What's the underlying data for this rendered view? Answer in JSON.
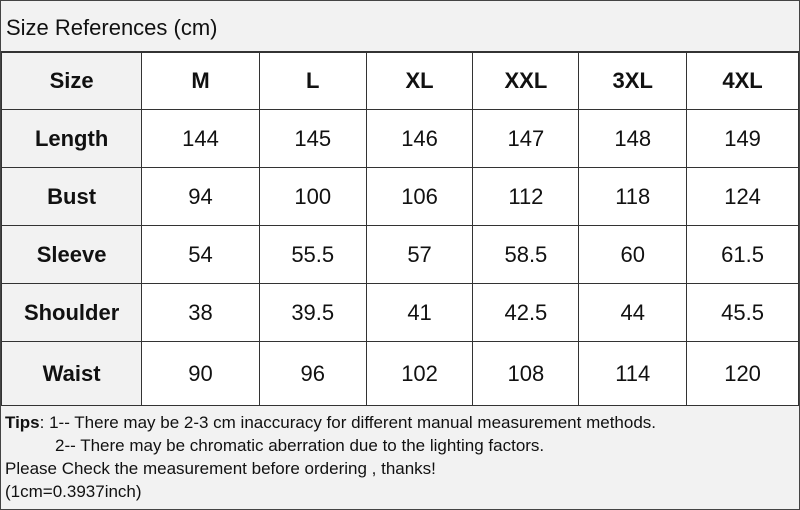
{
  "header": {
    "title": "Size References (cm)"
  },
  "table": {
    "columns": [
      "Size",
      "M",
      "L",
      "XL",
      "XXL",
      "3XL",
      "4XL"
    ],
    "rows": [
      [
        "Length",
        144,
        145,
        146,
        147,
        148,
        149
      ],
      [
        "Bust",
        94,
        100,
        106,
        112,
        118,
        124
      ],
      [
        "Sleeve",
        54,
        55.5,
        57,
        58.5,
        60,
        61.5
      ],
      [
        "Shoulder",
        38,
        39.5,
        41,
        42.5,
        44,
        45.5
      ],
      [
        "Waist",
        90,
        96,
        102,
        108,
        114,
        120
      ]
    ]
  },
  "tips": {
    "label": "Tips",
    "lines": [
      ": 1-- There may be 2-3 cm inaccuracy for different manual measurement methods.",
      "2-- There may be chromatic aberration due to the lighting factors.",
      "Please Check the measurement before ordering , thanks!",
      "(1cm=0.3937inch)"
    ]
  }
}
